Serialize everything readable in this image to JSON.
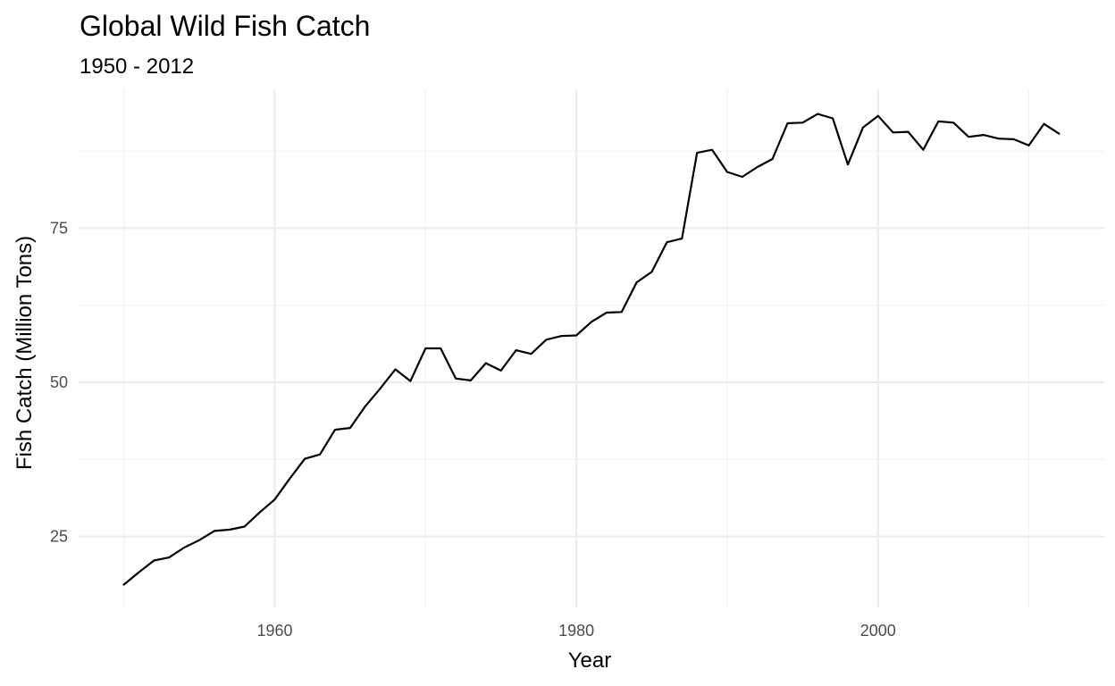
{
  "chart_data": {
    "type": "line",
    "title": "Global Wild Fish Catch",
    "subtitle": "1950 - 2012",
    "xlabel": "Year",
    "ylabel": "Fish Catch (Million Tons)",
    "xlim": [
      1947,
      2015
    ],
    "ylim": [
      13.5,
      97.5
    ],
    "x_major_ticks": [
      1960,
      1980,
      2000
    ],
    "x_minor_ticks": [
      1950,
      1970,
      1990,
      2010
    ],
    "y_major_ticks": [
      25,
      50,
      75
    ],
    "y_minor_ticks": [
      37.5,
      62.5,
      87.5
    ],
    "grid": true,
    "legend": "none",
    "line_color": "#000000",
    "series": [
      {
        "x": [
          1950,
          1951,
          1952,
          1953,
          1954,
          1955,
          1956,
          1957,
          1958,
          1959,
          1960,
          1961,
          1962,
          1963,
          1964,
          1965,
          1966,
          1967,
          1968,
          1969,
          1970,
          1971,
          1972,
          1973,
          1974,
          1975,
          1976,
          1977,
          1978,
          1979,
          1980,
          1981,
          1982,
          1983,
          1984,
          1985,
          1986,
          1987,
          1988,
          1989,
          1990,
          1991,
          1992,
          1993,
          1994,
          1995,
          1996,
          1997,
          1998,
          1999,
          2000,
          2001,
          2002,
          2003,
          2004,
          2005,
          2006,
          2007,
          2008,
          2009,
          2010,
          2011,
          2012
        ],
        "values": [
          17.2,
          19.2,
          21.1,
          21.6,
          23.2,
          24.4,
          25.9,
          26.1,
          26.6,
          28.9,
          31.0,
          34.4,
          37.6,
          38.3,
          42.3,
          42.6,
          46.1,
          49.0,
          52.1,
          50.2,
          55.5,
          55.5,
          50.6,
          50.3,
          53.1,
          51.9,
          55.2,
          54.6,
          56.9,
          57.5,
          57.6,
          59.8,
          61.3,
          61.4,
          66.2,
          67.9,
          72.7,
          73.3,
          87.2,
          87.7,
          84.1,
          83.3,
          84.9,
          86.2,
          92.0,
          92.1,
          93.5,
          92.8,
          85.3,
          91.3,
          93.2,
          90.5,
          90.6,
          87.7,
          92.3,
          92.1,
          89.8,
          90.1,
          89.5,
          89.4,
          88.4,
          91.9,
          90.3
        ]
      }
    ]
  }
}
